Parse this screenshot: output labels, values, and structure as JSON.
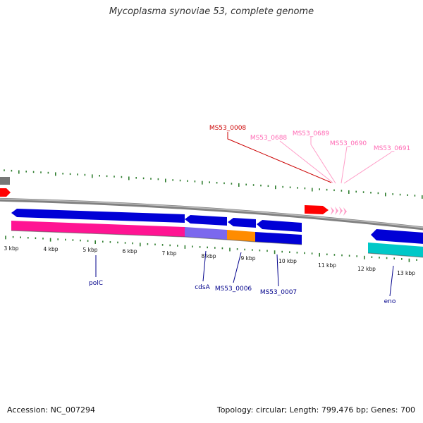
{
  "title": "Mycoplasma synoviae 53, complete genome",
  "footer": {
    "accession": "Accession: NC_007294",
    "topology": "Topology: circular; Length: 799,476 bp; Genes: 700"
  },
  "colors": {
    "forward_cds": "#0000d6",
    "reverse_cds": "#ff0000",
    "rna_pink": "#ff1493",
    "purple_feature": "#7b68ee",
    "orange_feature": "#ff8c00",
    "cyan_feature": "#00c8c8",
    "label_dark_blue": "#00008b",
    "label_red": "#cc0000",
    "label_pink": "#ff69b4",
    "tick_green": "#2e7d2e",
    "backbone": "#808080"
  },
  "scale_ticks": [
    {
      "label": "3 kbp"
    },
    {
      "label": "4 kbp"
    },
    {
      "label": "5 kbp"
    },
    {
      "label": "6 kbp"
    },
    {
      "label": "7 kbp"
    },
    {
      "label": "8 kbp"
    },
    {
      "label": "9 kbp"
    },
    {
      "label": "10 kbp"
    },
    {
      "label": "11 kbp"
    },
    {
      "label": "12 kbp"
    },
    {
      "label": "13 kbp"
    }
  ],
  "upper_labels": [
    {
      "text": "MS53_0008",
      "color": "#cc0000"
    },
    {
      "text": "MS53_0688",
      "color": "#ff69b4"
    },
    {
      "text": "MS53_0689",
      "color": "#ff69b4"
    },
    {
      "text": "MS53_0690",
      "color": "#ff69b4"
    },
    {
      "text": "MS53_0691",
      "color": "#ff69b4"
    }
  ],
  "lower_labels": [
    {
      "text": "polC"
    },
    {
      "text": "cdsA"
    },
    {
      "text": "MS53_0006"
    },
    {
      "text": "MS53_0007"
    },
    {
      "text": "eno"
    }
  ]
}
